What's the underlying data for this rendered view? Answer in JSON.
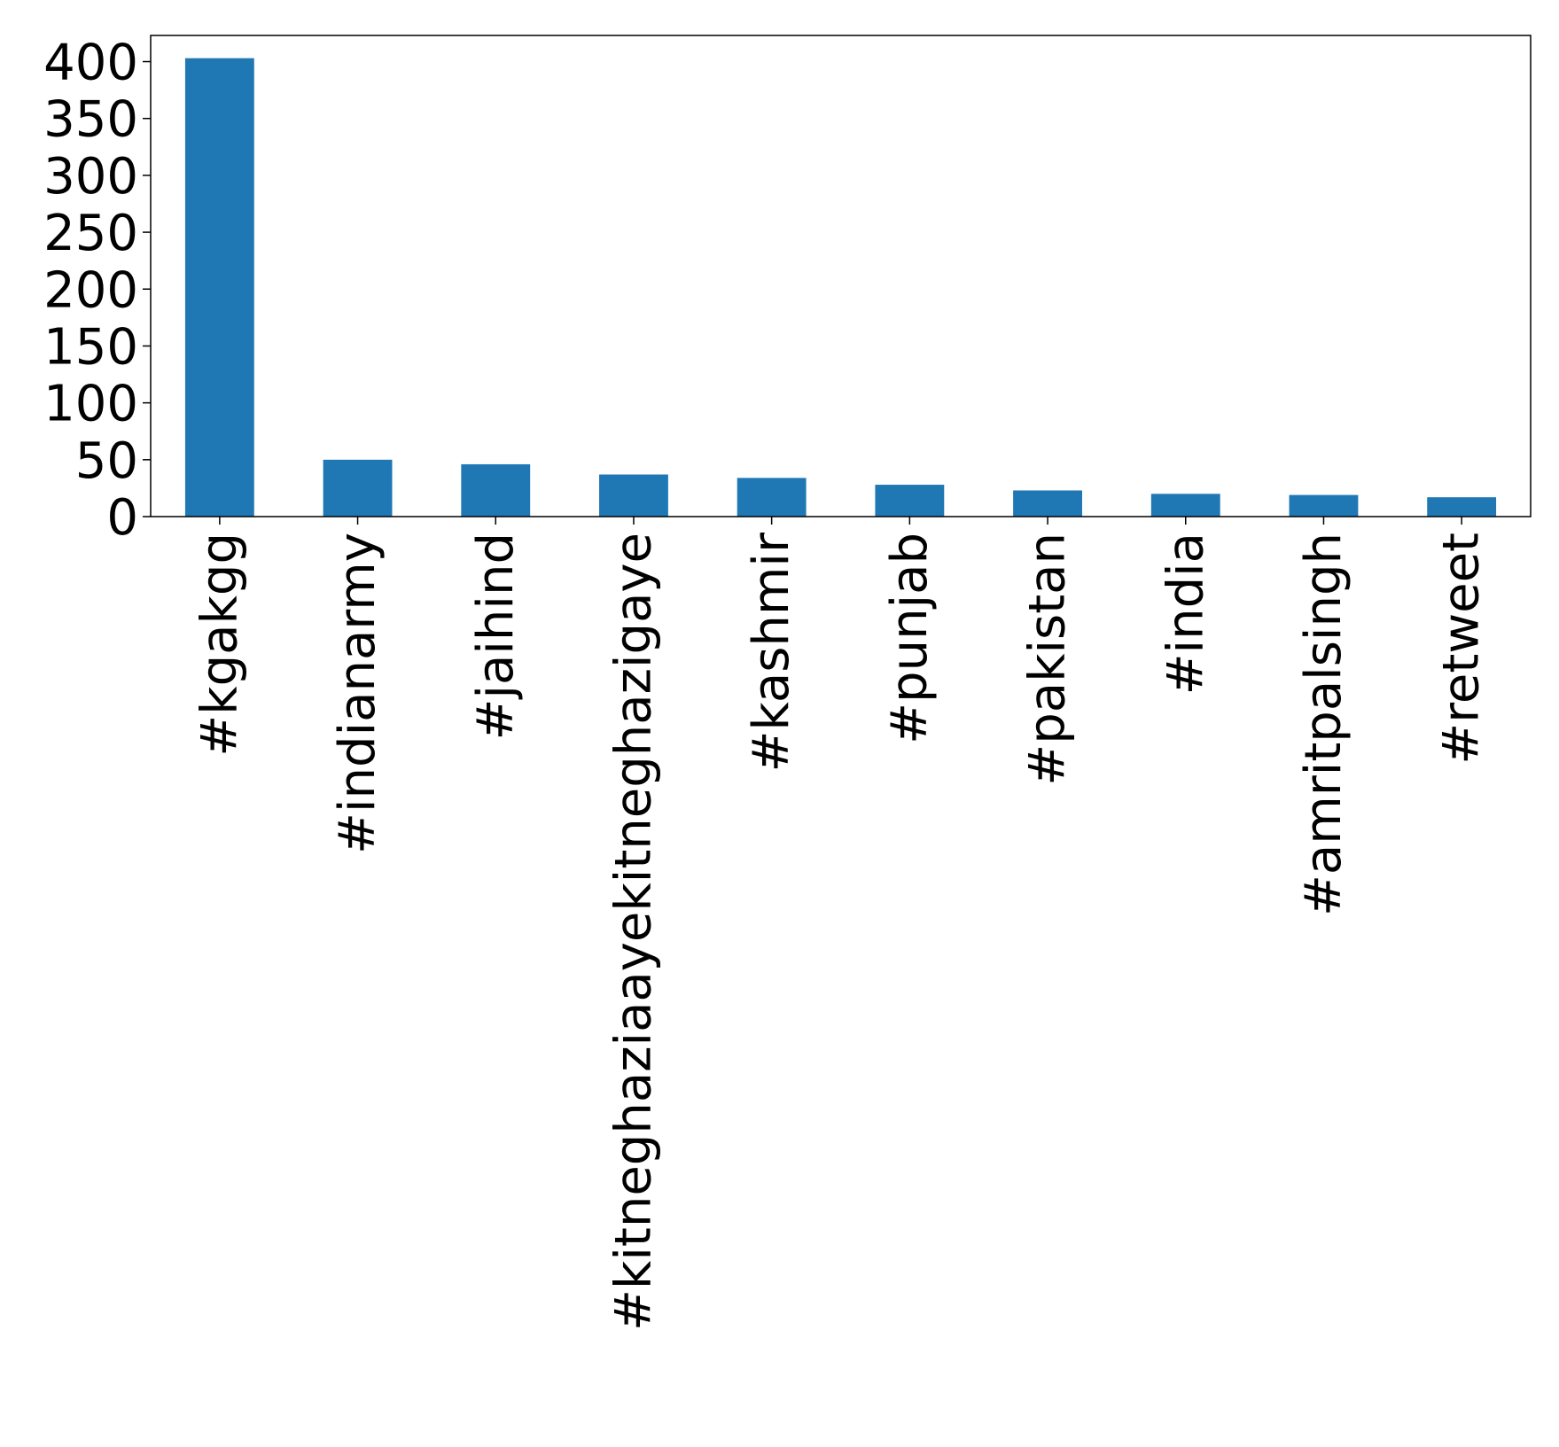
{
  "chart_data": {
    "type": "bar",
    "title": "",
    "xlabel": "",
    "ylabel": "",
    "categories": [
      "#kgakgg",
      "#indianarmy",
      "#jaihind",
      "#kitneghaziaayekitneghazigaye",
      "#kashmir",
      "#punjab",
      "#pakistan",
      "#india",
      "#amritpalsingh",
      "#retweet"
    ],
    "values": [
      403,
      50,
      46,
      37,
      34,
      28,
      23,
      20,
      19,
      17
    ],
    "ylim": [
      0,
      423
    ],
    "yticks": [
      0,
      50,
      100,
      150,
      200,
      250,
      300,
      350,
      400
    ],
    "ytick_labels": [
      "0",
      "50",
      "100",
      "150",
      "200",
      "250",
      "300",
      "350",
      "400"
    ],
    "bar_color": "#1f77b4",
    "grid": false,
    "legend": "none"
  }
}
